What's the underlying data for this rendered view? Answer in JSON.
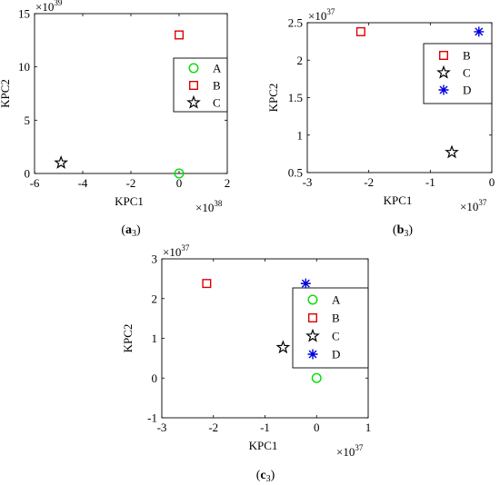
{
  "panels": [
    {
      "id": "a3",
      "caption": {
        "letter": "a",
        "sub": "3"
      },
      "xlabel": "KPC1",
      "ylabel": "KPC2",
      "x_multiplier": {
        "base": "×10",
        "exp": "38"
      },
      "y_multiplier": {
        "base": "×10",
        "exp": "39"
      },
      "xlim": [
        -6,
        2
      ],
      "ylim": [
        0,
        15
      ],
      "xticks": [
        -6,
        -4,
        -2,
        0,
        2
      ],
      "yticks": [
        0,
        5,
        10,
        15
      ],
      "xticklabels": [
        "-6",
        "-4",
        "-2",
        "0",
        "2"
      ],
      "yticklabels": [
        "0",
        "5",
        "10",
        "15"
      ],
      "legend_position": "right",
      "legend": [
        {
          "name": "A",
          "marker": "circle",
          "color": "#00dd00"
        },
        {
          "name": "B",
          "marker": "square",
          "color": "#dd0000"
        },
        {
          "name": "C",
          "marker": "star",
          "color": "#000000"
        }
      ]
    },
    {
      "id": "b3",
      "caption": {
        "letter": "b",
        "sub": "3"
      },
      "xlabel": "KPC1",
      "ylabel": "KPC2",
      "x_multiplier": {
        "base": "×10",
        "exp": "37"
      },
      "y_multiplier": {
        "base": "×10",
        "exp": "37"
      },
      "xlim": [
        -3,
        0
      ],
      "ylim": [
        0.5,
        2.5
      ],
      "xticks": [
        -3,
        -2,
        -1,
        0
      ],
      "yticks": [
        0.5,
        1,
        1.5,
        2,
        2.5
      ],
      "xticklabels": [
        "-3",
        "-2",
        "-1",
        "0"
      ],
      "yticklabels": [
        "0.5",
        "1",
        "1.5",
        "2",
        "2.5"
      ],
      "legend_position": "right",
      "legend": [
        {
          "name": "B",
          "marker": "square",
          "color": "#dd0000"
        },
        {
          "name": "C",
          "marker": "star",
          "color": "#000000"
        },
        {
          "name": "D",
          "marker": "asterisk",
          "color": "#0000dd"
        }
      ]
    },
    {
      "id": "c3",
      "caption": {
        "letter": "c",
        "sub": "3"
      },
      "xlabel": "KPC1",
      "ylabel": "KPC2",
      "x_multiplier": {
        "base": "×10",
        "exp": "37"
      },
      "y_multiplier": {
        "base": "×10",
        "exp": "37"
      },
      "xlim": [
        -3,
        1
      ],
      "ylim": [
        -1,
        3
      ],
      "xticks": [
        -3,
        -2,
        -1,
        0,
        1
      ],
      "yticks": [
        -1,
        0,
        1,
        2,
        3
      ],
      "xticklabels": [
        "-3",
        "-2",
        "-1",
        "0",
        "1"
      ],
      "yticklabels": [
        "-1",
        "0",
        "1",
        "2",
        "3"
      ],
      "legend_position": "right",
      "legend": [
        {
          "name": "A",
          "marker": "circle",
          "color": "#00dd00"
        },
        {
          "name": "B",
          "marker": "square",
          "color": "#dd0000"
        },
        {
          "name": "C",
          "marker": "star",
          "color": "#000000"
        },
        {
          "name": "D",
          "marker": "asterisk",
          "color": "#0000dd"
        }
      ]
    }
  ],
  "chart_data": [
    {
      "type": "scatter",
      "xlabel": "KPC1",
      "ylabel": "KPC2",
      "xlim": [
        -6e+38,
        2e+38
      ],
      "ylim": [
        0,
        1.5e+40
      ],
      "grid": false,
      "series": [
        {
          "name": "A",
          "x": [
            0
          ],
          "y": [
            0
          ]
        },
        {
          "name": "B",
          "x": [
            0
          ],
          "y": [
            1.3e+40
          ]
        },
        {
          "name": "C",
          "x": [
            -4.9e+38
          ],
          "y": [
            1e+39
          ]
        }
      ]
    },
    {
      "type": "scatter",
      "xlabel": "KPC1",
      "ylabel": "KPC2",
      "xlim": [
        -3e+37,
        0
      ],
      "ylim": [
        5e+36,
        2.5e+37
      ],
      "grid": false,
      "series": [
        {
          "name": "B",
          "x": [
            -2.13e+37
          ],
          "y": [
            2.38e+37
          ]
        },
        {
          "name": "C",
          "x": [
            -6.5e+36
          ],
          "y": [
            7.7e+36
          ]
        },
        {
          "name": "D",
          "x": [
            -2.1e+36
          ],
          "y": [
            2.38e+37
          ]
        }
      ]
    },
    {
      "type": "scatter",
      "xlabel": "KPC1",
      "ylabel": "KPC2",
      "xlim": [
        -3e+37,
        1e+37
      ],
      "ylim": [
        -1e+37,
        3e+37
      ],
      "grid": false,
      "series": [
        {
          "name": "A",
          "x": [
            0
          ],
          "y": [
            0
          ]
        },
        {
          "name": "B",
          "x": [
            -2.13e+37
          ],
          "y": [
            2.38e+37
          ]
        },
        {
          "name": "C",
          "x": [
            -6.5e+36
          ],
          "y": [
            7.7e+36
          ]
        },
        {
          "name": "D",
          "x": [
            -2.1e+36
          ],
          "y": [
            2.38e+37
          ]
        }
      ]
    }
  ]
}
